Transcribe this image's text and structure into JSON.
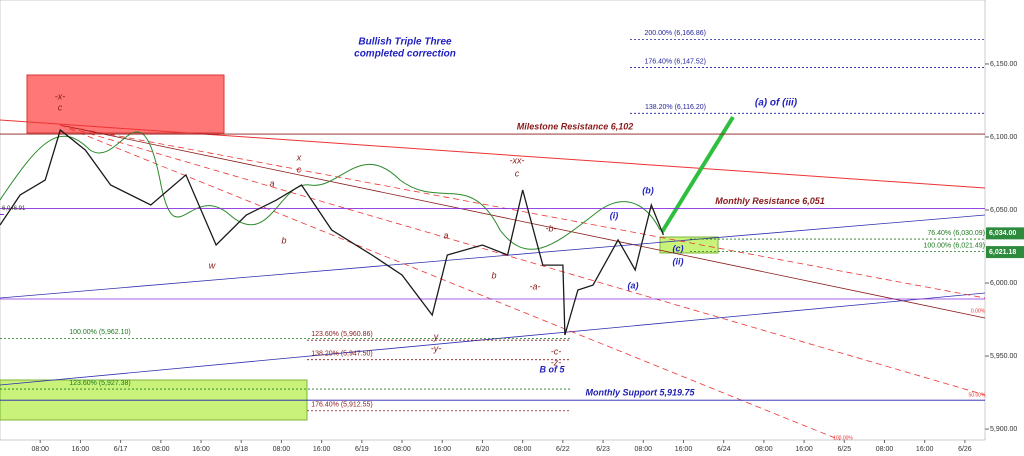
{
  "chart_data": {
    "type": "line",
    "title": "Bullish Triple Three",
    "subtitle": "completed correction",
    "x": [
      -1,
      -0.5,
      0.125,
      0.5,
      1.125,
      1.75,
      2.75,
      3.625,
      4.375,
      5.125,
      5.875,
      6.5,
      7.25,
      8.25,
      9,
      9.75,
      10.125,
      11,
      11.625,
      12,
      12.5,
      13,
      13.05,
      13.375,
      13.75,
      14.375,
      14.8,
      15.2,
      15.5
    ],
    "values": [
      6039.7,
      6060.3,
      6070.5,
      6104.8,
      6091,
      6067.1,
      6053.4,
      6074,
      6026,
      6046.6,
      6056.8,
      6067.1,
      6036.3,
      6019.2,
      6005.5,
      5978.1,
      6019.2,
      6026,
      6019.2,
      6063.7,
      6012.3,
      6012.3,
      5964.4,
      5995.2,
      5998.6,
      6029.5,
      6008.9,
      6053.4,
      6032.9
    ],
    "color": "#1a1a1a",
    "xlim": [
      -1,
      23.5
    ],
    "xticks": [
      {
        "value": 0,
        "label": "08:00"
      },
      {
        "value": 1,
        "label": "16:00"
      },
      {
        "value": 2,
        "label": "6/17"
      },
      {
        "value": 3,
        "label": "08:00"
      },
      {
        "value": 4,
        "label": "16:00"
      },
      {
        "value": 5,
        "label": "6/18"
      },
      {
        "value": 6,
        "label": "08:00"
      },
      {
        "value": 7,
        "label": "16:00"
      },
      {
        "value": 8,
        "label": "6/19"
      },
      {
        "value": 9,
        "label": "08:00"
      },
      {
        "value": 10,
        "label": "16:00"
      },
      {
        "value": 11,
        "label": "6/20"
      },
      {
        "value": 12,
        "label": "08:00"
      },
      {
        "value": 13,
        "label": "6/22"
      },
      {
        "value": 14,
        "label": "6/23"
      },
      {
        "value": 15,
        "label": "08:00"
      },
      {
        "value": 16,
        "label": "16:00"
      },
      {
        "value": 17,
        "label": "6/24"
      },
      {
        "value": 18,
        "label": "08:00"
      },
      {
        "value": 19,
        "label": "16:00"
      },
      {
        "value": 20,
        "label": "6/25"
      },
      {
        "value": 21,
        "label": "08:00"
      },
      {
        "value": 22,
        "label": "16:00"
      },
      {
        "value": 23,
        "label": "6/26"
      }
    ],
    "ylim": [
      5892.5,
      6193.8
    ],
    "yticks": [
      {
        "value": 5900,
        "label": "5,900.00"
      },
      {
        "value": 5950,
        "label": "5,950.00"
      },
      {
        "value": 6000,
        "label": "6,000.00"
      },
      {
        "value": 6050,
        "label": "6,050.00"
      },
      {
        "value": 6100,
        "label": "6,100.00"
      },
      {
        "value": 6150,
        "label": "6,150.00"
      }
    ],
    "levels": [
      {
        "label": "200.00% (6,166.86)",
        "value": 6166.86,
        "color": "#1f1f9a"
      },
      {
        "label": "176.40% (6,147.52)",
        "value": 6147.52,
        "color": "#1f1f9a"
      },
      {
        "label": "138.20% (6,116.20)",
        "value": 6116.2,
        "color": "#1f1f9a"
      },
      {
        "label": "76.40% (6,030.09)",
        "value": 6030.09,
        "color": "#1e7a1e"
      },
      {
        "label": "100.00% (6,021.49)",
        "value": 6021.49,
        "color": "#1e7a1e"
      },
      {
        "label": "100.00% (5,962.10)",
        "value": 5962.1,
        "color": "#1e7a1e"
      },
      {
        "label": "123.60% (5,960.86)",
        "value": 5960.86,
        "color": "#8b1a1a"
      },
      {
        "label": "138.20% (5,947.50)",
        "value": 5947.5,
        "color": "#8b1a1a"
      },
      {
        "label": "123.60% (5,927.38)",
        "value": 5927.38,
        "color": "#1e7a1e"
      },
      {
        "label": "176.40% (5,912.55)",
        "value": 5912.55,
        "color": "#8b1a1a"
      }
    ],
    "key_lines": [
      {
        "label": "Milestone Resistance 6,102",
        "value": 6102,
        "color": "#8b1a1a"
      },
      {
        "label": "Monthly Resistance 6,051",
        "value": 6051,
        "color": "#8a2be2"
      },
      {
        "label": "Monthly Support 5,919.75",
        "value": 5919.75,
        "color": "#2020b0"
      }
    ],
    "annotations": [
      "-x-",
      "c",
      "x",
      "c",
      "a",
      "b",
      "w",
      "-xx-",
      "c",
      "a",
      "b",
      "-b-",
      "-a-",
      "y",
      "-y-",
      "-c-",
      "-z-",
      "B of 5",
      "(i)",
      "(ii)",
      "(a)",
      "(b)",
      "(c)",
      "(a) of (iii)"
    ],
    "channel_labels": [
      "0.00%",
      "50.00%",
      "100.00%"
    ],
    "price_tags": [
      {
        "value": 6034,
        "label": "6,034.00"
      },
      {
        "value": 6021.18,
        "label": "6,021.18"
      }
    ],
    "last_label": {
      "value": 6046.91,
      "label": "6,046.91"
    }
  }
}
